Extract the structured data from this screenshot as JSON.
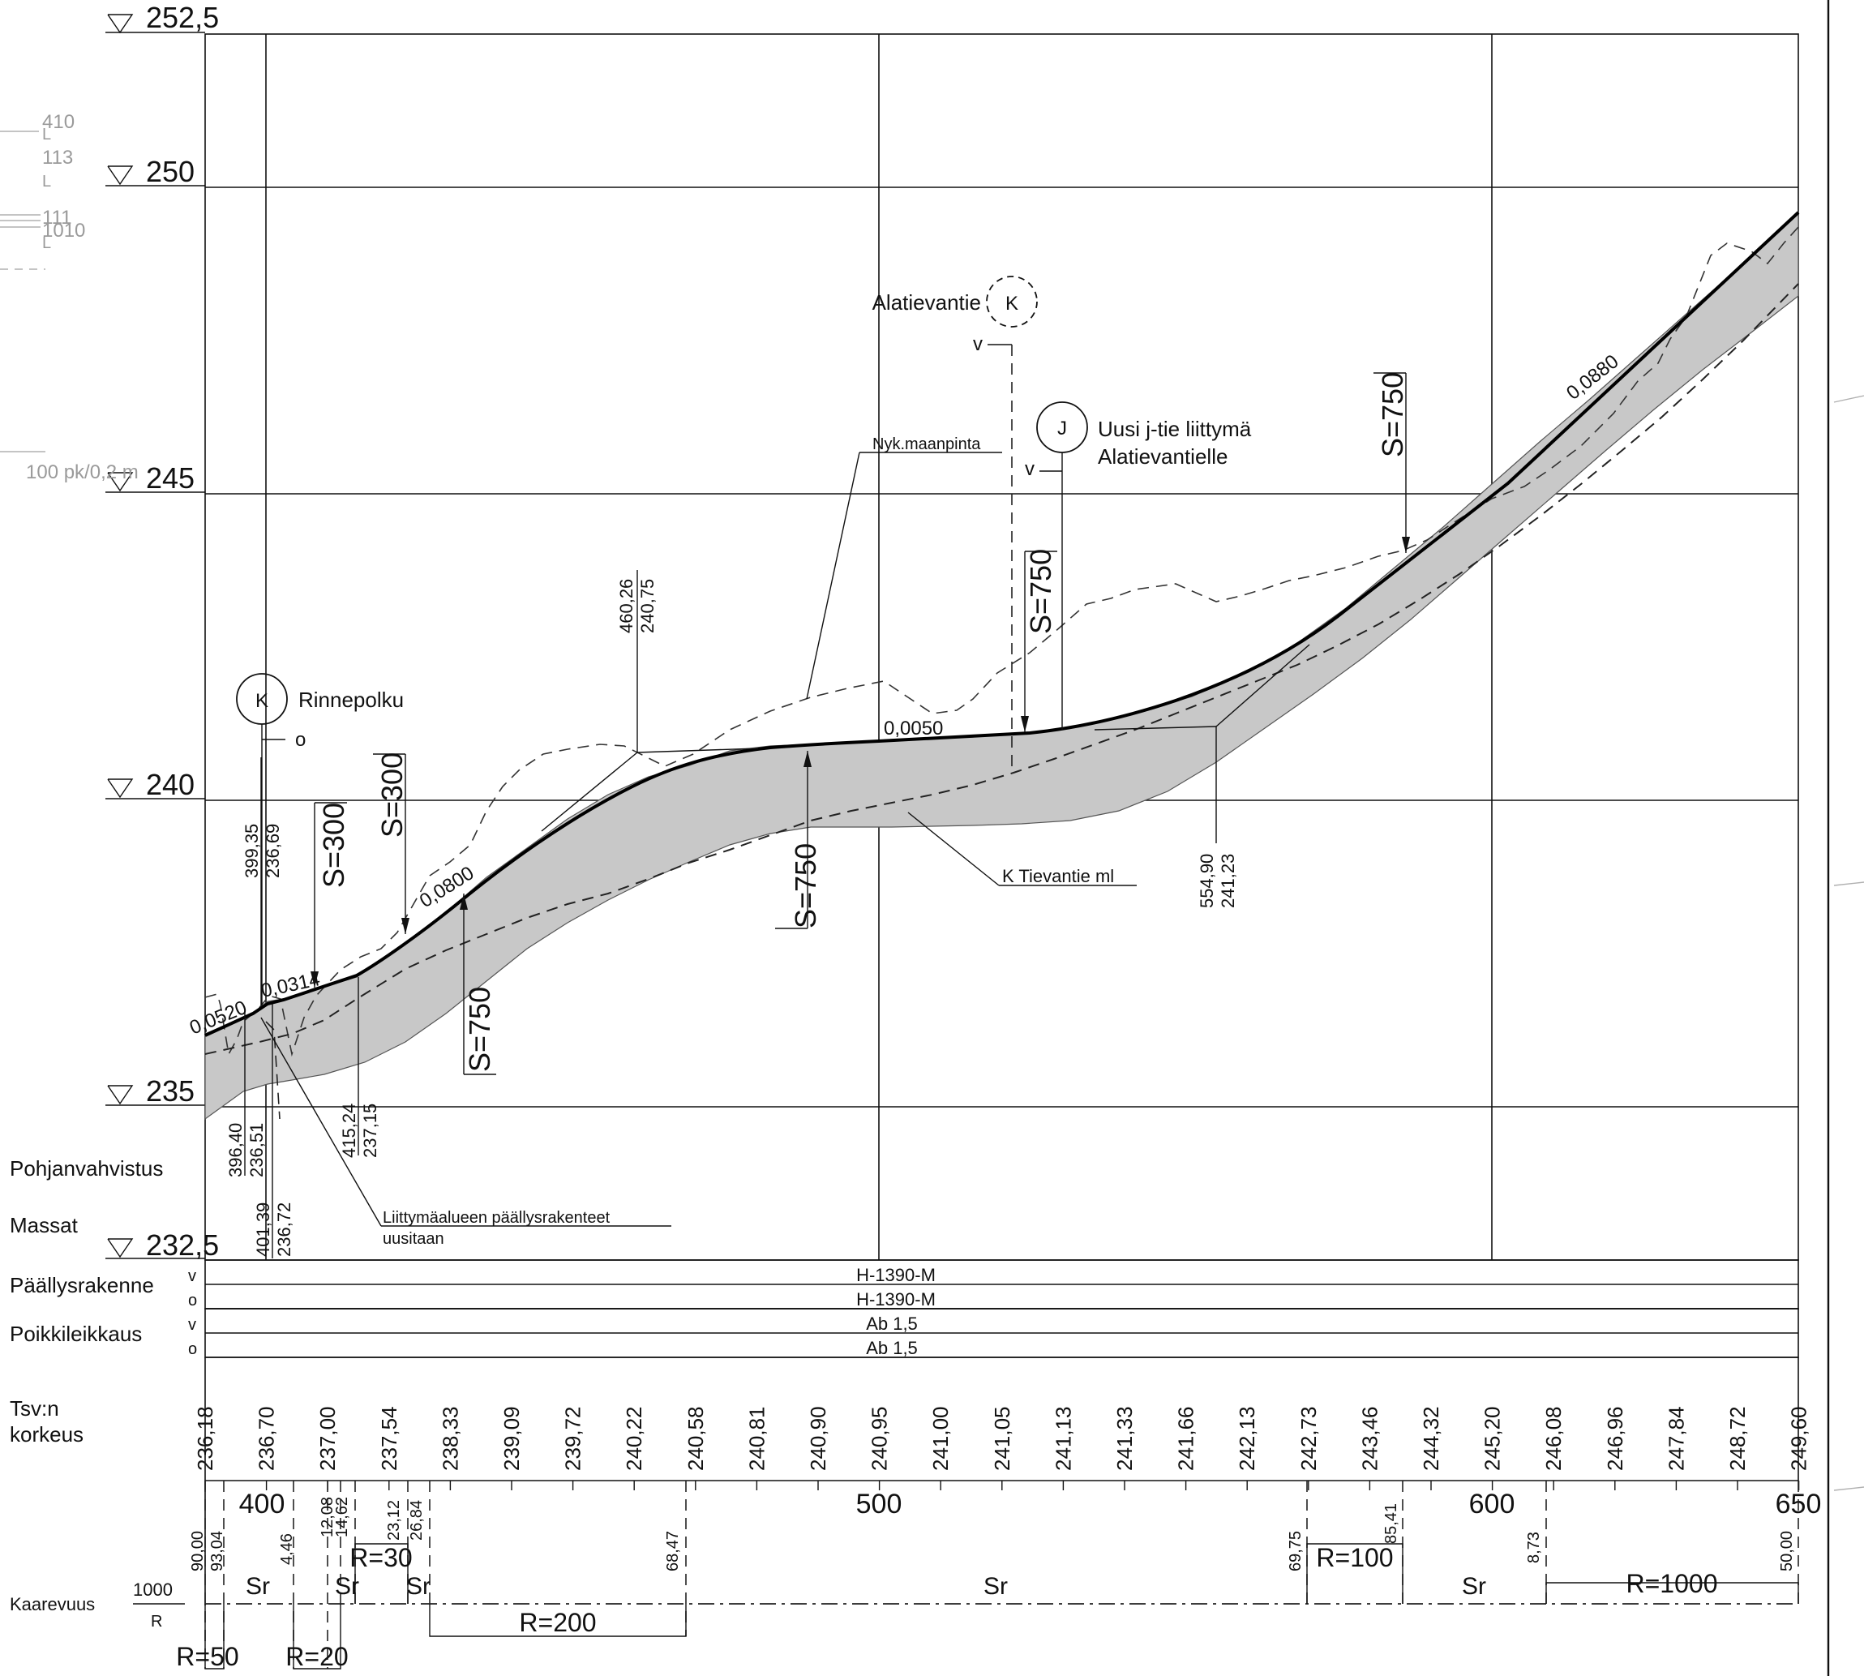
{
  "elevation_labels": [
    "252,5",
    "250",
    "245",
    "240",
    "235",
    "232,5"
  ],
  "left_margin_faint": {
    "labels": [
      "410",
      "L",
      "113",
      "L",
      "111",
      "1010",
      "L"
    ],
    "scale_note": "100  pk/0,2 m"
  },
  "annotations": {
    "alatievantie": "Alatievantie",
    "marker_k": "K",
    "marker_j": "J",
    "v": "v",
    "o": "o",
    "uusi_line1": "Uusi j-tie liittymä",
    "uusi_line2": "Alatievantielle",
    "nyk_maanpinta": "Nyk.maanpinta",
    "rinnepolku": "Rinnepolku",
    "k_tievantie": "K Tievantie ml",
    "liittyma_line1": "Liittymäalueen päällysrakenteet",
    "liittyma_line2": "uusitaan"
  },
  "slopes": [
    "0,0520",
    "0,0314",
    "0,0800",
    "0,0050",
    "0,0880"
  ],
  "vertical_curves": [
    "S=300",
    "S=300",
    "S=750",
    "S=750",
    "S=750",
    "S=750"
  ],
  "break_points": [
    {
      "station": "399,35",
      "elevation": "236,69"
    },
    {
      "station": "396,40",
      "elevation": "236,51"
    },
    {
      "station": "401,39",
      "elevation": "236,72"
    },
    {
      "station": "415,24",
      "elevation": "237,15"
    },
    {
      "station": "460,26",
      "elevation": "240,75"
    },
    {
      "station": "554,90",
      "elevation": "241,23"
    }
  ],
  "row_labels": {
    "pohjanvahvistus": "Pohjanvahvistus",
    "massat": "Massat",
    "paallysrakenne": "Päällysrakenne",
    "poikkileikkaus": "Poikkileikkaus",
    "tsv_line1": "Tsv:n",
    "tsv_line2": "korkeus",
    "kaarevuus": "Kaarevuus",
    "v": "v",
    "o": "o"
  },
  "paallysrakenne": {
    "v": "H-1390-M",
    "o": "H-1390-M"
  },
  "poikkileikkaus": {
    "v": "Ab 1,5",
    "o": "Ab 1,5"
  },
  "tsv_heights": [
    "236,18",
    "236,70",
    "237,00",
    "237,54",
    "238,33",
    "239,09",
    "239,72",
    "240,22",
    "240,58",
    "240,81",
    "240,90",
    "240,95",
    "241,00",
    "241,05",
    "241,13",
    "241,33",
    "241,66",
    "242,13",
    "242,73",
    "243,46",
    "244,32",
    "245,20",
    "246,08",
    "246,96",
    "247,84",
    "248,72",
    "249,60"
  ],
  "stations": [
    "400",
    "500",
    "600",
    "650"
  ],
  "curvature": {
    "scale_top": "1000",
    "scale_bottom": "R",
    "point_labels": [
      "90,00",
      "93,04",
      "4,46",
      "12,08",
      "14,62",
      "23,12",
      "26,84",
      "68,47",
      "69,75",
      "85,41",
      "8,73",
      "50,00"
    ],
    "segments": [
      "Sr",
      "Sr",
      "Sr",
      "Sr",
      "Sr",
      "R=30",
      "R=200",
      "R=100",
      "R=1000",
      "R=50",
      "R=20"
    ]
  }
}
